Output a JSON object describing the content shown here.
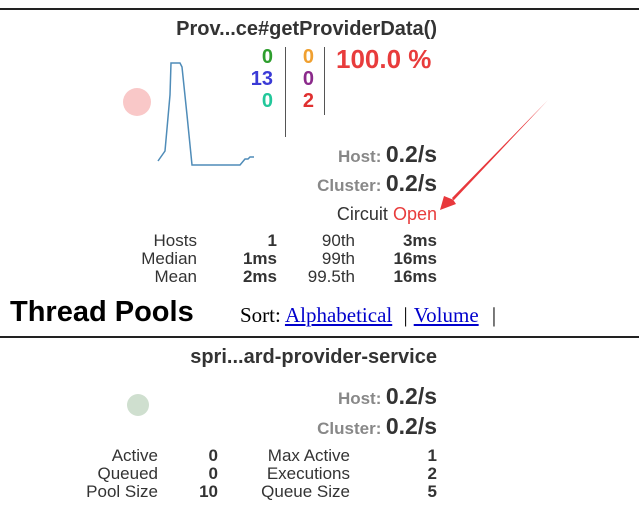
{
  "command": {
    "title": "Prov...ce#getProviderData()",
    "counts_left": [
      {
        "value": "0",
        "color": "#2e9e2e"
      },
      {
        "value": "13",
        "color": "#3a3ad6"
      },
      {
        "value": "0",
        "color": "#22c79a"
      }
    ],
    "counts_right": [
      {
        "value": "0",
        "color": "#f0a030"
      },
      {
        "value": "0",
        "color": "#8b2a8b"
      },
      {
        "value": "2",
        "color": "#e03030"
      }
    ],
    "error_percent": "100.0 %",
    "error_color": "#e83c3c",
    "circle_color": "#f9c8c8",
    "sparkline_color": "#4f8cb8",
    "host_label": "Host:",
    "host_rate": "0.2/s",
    "cluster_label": "Cluster:",
    "cluster_rate": "0.2/s",
    "circuit_label": "Circuit",
    "circuit_status": "Open",
    "circuit_status_color": "#e83c3c",
    "stats": [
      {
        "label": "Hosts",
        "value": "1",
        "pct_label": "90th",
        "pct_value": "3ms"
      },
      {
        "label": "Median",
        "value": "1ms",
        "pct_label": "99th",
        "pct_value": "16ms"
      },
      {
        "label": "Mean",
        "value": "2ms",
        "pct_label": "99.5th",
        "pct_value": "16ms"
      }
    ]
  },
  "thread_pools": {
    "heading": "Thread Pools",
    "sort_label": "Sort:",
    "sort_options": [
      "Alphabetical",
      "Volume"
    ],
    "separator": "|"
  },
  "pool": {
    "title": "spri...ard-provider-service",
    "circle_color": "#cfdfcf",
    "host_label": "Host:",
    "host_rate": "0.2/s",
    "cluster_label": "Cluster:",
    "cluster_rate": "0.2/s",
    "stats": [
      {
        "label": "Active",
        "value": "0",
        "label2": "Max Active",
        "value2": "1"
      },
      {
        "label": "Queued",
        "value": "0",
        "label2": "Executions",
        "value2": "2"
      },
      {
        "label": "Pool Size",
        "value": "10",
        "label2": "Queue Size",
        "value2": "5"
      }
    ]
  },
  "annotation": {
    "arrow_color": "#e8383c"
  }
}
